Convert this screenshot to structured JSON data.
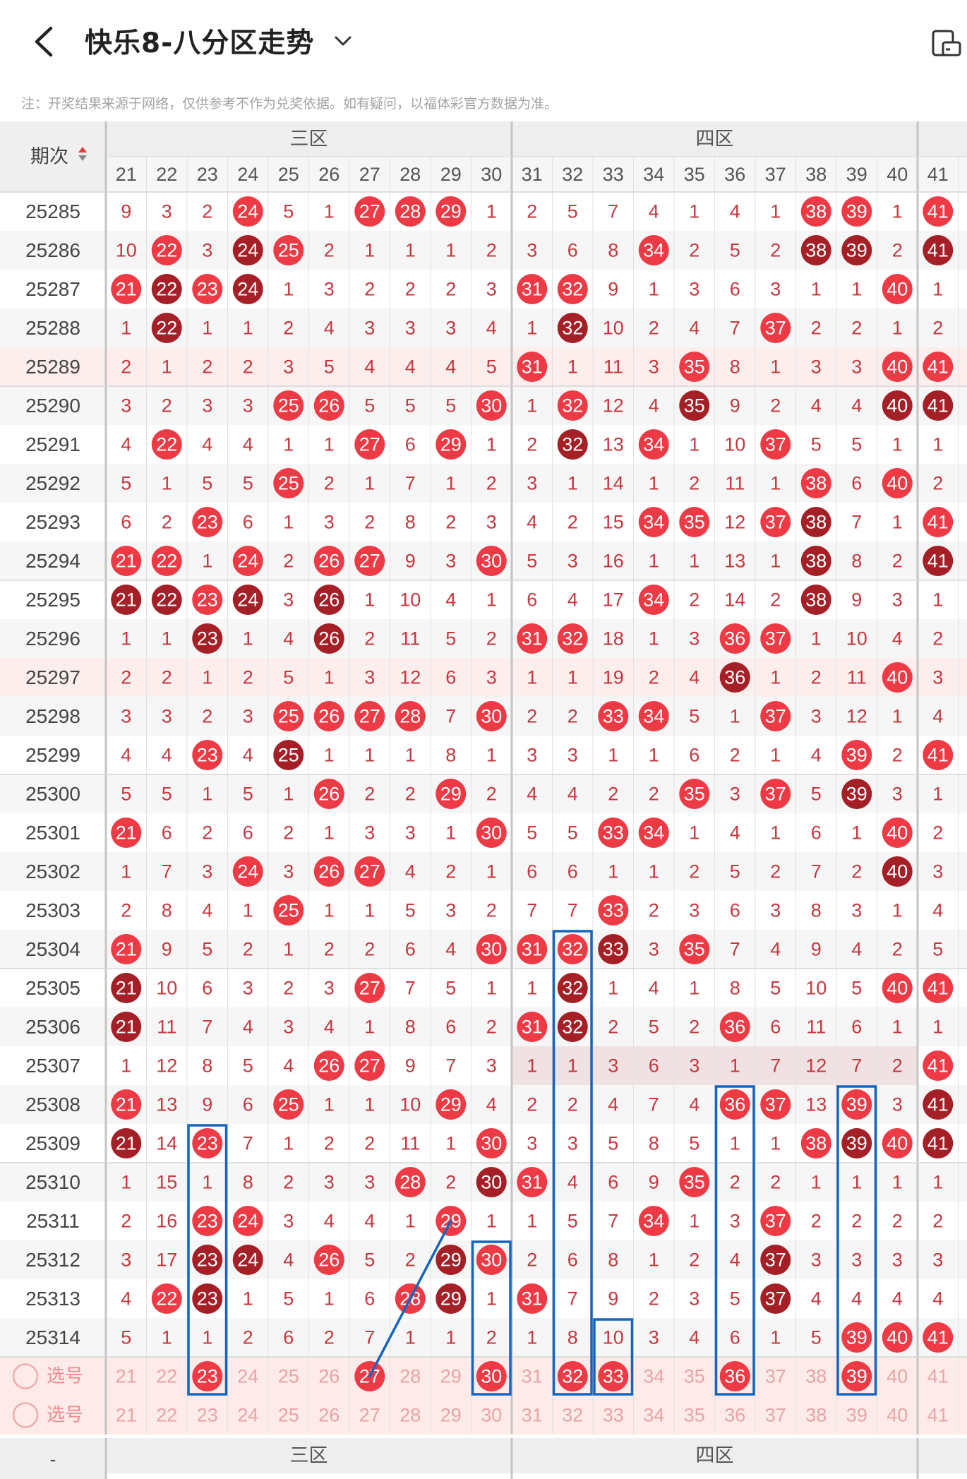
{
  "header": {
    "back_icon": "chevron-left-icon",
    "title": "快乐8-八分区走势",
    "dropdown_icon": "chevron-down-icon",
    "right_icon": "rotate-device-icon"
  },
  "note": "注：开奖结果来源于网络，仅供参考不作为兑奖依据。如有疑问，以福体彩官方数据为准。",
  "table": {
    "period_header": "期次",
    "sort_icon": "sort-arrows-icon",
    "zones": [
      "三区",
      "四区"
    ],
    "columns": [
      21,
      22,
      23,
      24,
      25,
      26,
      27,
      28,
      29,
      30,
      31,
      32,
      33,
      34,
      35,
      36,
      37,
      38,
      39,
      40,
      41
    ],
    "select_label": "选号",
    "footer_dash": "-",
    "colors": {
      "hit": "#ee3a45",
      "repeat": "#a51f26",
      "miss": "#c6373f",
      "pick_text": "#eaa3a6",
      "mark": "#1565c0"
    },
    "rows": [
      {
        "period": "25285",
        "cells": [
          9,
          3,
          2,
          24,
          5,
          1,
          27,
          28,
          29,
          1,
          2,
          5,
          7,
          4,
          1,
          4,
          1,
          38,
          39,
          1,
          41
        ]
      },
      {
        "period": "25286",
        "cells": [
          10,
          22,
          3,
          24,
          25,
          2,
          1,
          1,
          1,
          2,
          3,
          6,
          8,
          34,
          2,
          5,
          2,
          38,
          39,
          2,
          41
        ]
      },
      {
        "period": "25287",
        "cells": [
          21,
          22,
          23,
          24,
          1,
          3,
          2,
          2,
          2,
          3,
          31,
          32,
          9,
          1,
          3,
          6,
          3,
          1,
          1,
          40,
          1
        ]
      },
      {
        "period": "25288",
        "cells": [
          1,
          22,
          1,
          1,
          2,
          4,
          3,
          3,
          3,
          4,
          1,
          32,
          10,
          2,
          4,
          7,
          37,
          2,
          2,
          1,
          2
        ]
      },
      {
        "period": "25289",
        "cells": [
          2,
          1,
          2,
          2,
          3,
          5,
          4,
          4,
          4,
          5,
          31,
          1,
          11,
          3,
          35,
          8,
          1,
          3,
          3,
          40,
          41
        ]
      },
      {
        "period": "25290",
        "cells": [
          3,
          2,
          3,
          3,
          25,
          26,
          5,
          5,
          5,
          30,
          1,
          32,
          12,
          4,
          35,
          9,
          2,
          4,
          4,
          40,
          41
        ]
      },
      {
        "period": "25291",
        "cells": [
          4,
          22,
          4,
          4,
          1,
          1,
          27,
          6,
          29,
          1,
          2,
          32,
          13,
          34,
          1,
          10,
          37,
          5,
          5,
          1,
          1
        ]
      },
      {
        "period": "25292",
        "cells": [
          5,
          1,
          5,
          5,
          25,
          2,
          1,
          7,
          1,
          2,
          3,
          1,
          14,
          1,
          2,
          11,
          1,
          38,
          6,
          40,
          2
        ]
      },
      {
        "period": "25293",
        "cells": [
          6,
          2,
          23,
          6,
          1,
          3,
          2,
          8,
          2,
          3,
          4,
          2,
          15,
          34,
          35,
          12,
          37,
          38,
          7,
          1,
          41
        ]
      },
      {
        "period": "25294",
        "cells": [
          21,
          22,
          1,
          24,
          2,
          26,
          27,
          9,
          3,
          30,
          5,
          3,
          16,
          1,
          1,
          13,
          1,
          38,
          8,
          2,
          41
        ]
      },
      {
        "period": "25295",
        "cells": [
          21,
          22,
          23,
          24,
          3,
          26,
          1,
          10,
          4,
          1,
          6,
          4,
          17,
          34,
          2,
          14,
          2,
          38,
          9,
          3,
          1
        ]
      },
      {
        "period": "25296",
        "cells": [
          1,
          1,
          23,
          1,
          4,
          26,
          2,
          11,
          5,
          2,
          31,
          32,
          18,
          1,
          3,
          36,
          37,
          1,
          10,
          4,
          2
        ]
      },
      {
        "period": "25297",
        "cells": [
          2,
          2,
          1,
          2,
          5,
          1,
          3,
          12,
          6,
          3,
          1,
          1,
          19,
          2,
          4,
          36,
          1,
          2,
          11,
          40,
          3
        ]
      },
      {
        "period": "25298",
        "cells": [
          3,
          3,
          2,
          3,
          25,
          26,
          27,
          28,
          7,
          30,
          2,
          2,
          33,
          34,
          5,
          1,
          37,
          3,
          12,
          1,
          4
        ]
      },
      {
        "period": "25299",
        "cells": [
          4,
          4,
          23,
          4,
          25,
          1,
          1,
          1,
          8,
          1,
          3,
          3,
          1,
          1,
          6,
          2,
          1,
          4,
          39,
          2,
          41
        ]
      },
      {
        "period": "25300",
        "cells": [
          5,
          5,
          1,
          5,
          1,
          26,
          2,
          2,
          29,
          2,
          4,
          4,
          2,
          2,
          35,
          3,
          37,
          5,
          39,
          3,
          1
        ]
      },
      {
        "period": "25301",
        "cells": [
          21,
          6,
          2,
          6,
          2,
          1,
          3,
          3,
          1,
          30,
          5,
          5,
          33,
          34,
          1,
          4,
          1,
          6,
          1,
          40,
          2
        ]
      },
      {
        "period": "25302",
        "cells": [
          1,
          7,
          3,
          24,
          3,
          26,
          27,
          4,
          2,
          1,
          6,
          6,
          1,
          1,
          2,
          5,
          2,
          7,
          2,
          40,
          3
        ]
      },
      {
        "period": "25303",
        "cells": [
          2,
          8,
          4,
          1,
          25,
          1,
          1,
          5,
          3,
          2,
          7,
          7,
          33,
          2,
          3,
          6,
          3,
          8,
          3,
          1,
          4
        ]
      },
      {
        "period": "25304",
        "cells": [
          21,
          9,
          5,
          2,
          1,
          2,
          2,
          6,
          4,
          30,
          31,
          32,
          33,
          3,
          35,
          7,
          4,
          9,
          4,
          2,
          5
        ]
      },
      {
        "period": "25305",
        "cells": [
          21,
          10,
          6,
          3,
          2,
          3,
          27,
          7,
          5,
          1,
          1,
          32,
          1,
          4,
          1,
          8,
          5,
          10,
          5,
          40,
          41
        ]
      },
      {
        "period": "25306",
        "cells": [
          21,
          11,
          7,
          4,
          3,
          4,
          1,
          8,
          6,
          2,
          31,
          32,
          2,
          5,
          2,
          36,
          6,
          11,
          6,
          1,
          1
        ]
      },
      {
        "period": "25307",
        "cells": [
          1,
          12,
          8,
          5,
          4,
          26,
          27,
          9,
          7,
          3,
          1,
          1,
          3,
          6,
          3,
          1,
          7,
          12,
          7,
          2,
          41
        ]
      },
      {
        "period": "25308",
        "cells": [
          21,
          13,
          9,
          6,
          25,
          1,
          1,
          10,
          29,
          4,
          2,
          2,
          4,
          7,
          4,
          36,
          37,
          13,
          39,
          3,
          41
        ]
      },
      {
        "period": "25309",
        "cells": [
          21,
          14,
          23,
          7,
          1,
          2,
          2,
          11,
          1,
          30,
          3,
          3,
          5,
          8,
          5,
          1,
          1,
          38,
          39,
          40,
          41
        ]
      },
      {
        "period": "25310",
        "cells": [
          1,
          15,
          1,
          8,
          2,
          3,
          3,
          28,
          2,
          30,
          31,
          4,
          6,
          9,
          35,
          2,
          2,
          1,
          1,
          1,
          1
        ]
      },
      {
        "period": "25311",
        "cells": [
          2,
          16,
          23,
          24,
          3,
          4,
          4,
          1,
          29,
          1,
          1,
          5,
          7,
          34,
          1,
          3,
          37,
          2,
          2,
          2,
          2
        ]
      },
      {
        "period": "25312",
        "cells": [
          3,
          17,
          23,
          24,
          4,
          26,
          5,
          2,
          29,
          30,
          2,
          6,
          8,
          1,
          2,
          4,
          37,
          3,
          3,
          3,
          3
        ]
      },
      {
        "period": "25313",
        "cells": [
          4,
          22,
          23,
          1,
          5,
          1,
          6,
          28,
          29,
          1,
          31,
          7,
          9,
          2,
          3,
          5,
          37,
          4,
          4,
          4,
          4
        ]
      },
      {
        "period": "25314",
        "cells": [
          5,
          1,
          1,
          2,
          6,
          2,
          7,
          1,
          1,
          2,
          1,
          8,
          10,
          3,
          4,
          6,
          1,
          5,
          39,
          40,
          41
        ]
      }
    ]
  }
}
